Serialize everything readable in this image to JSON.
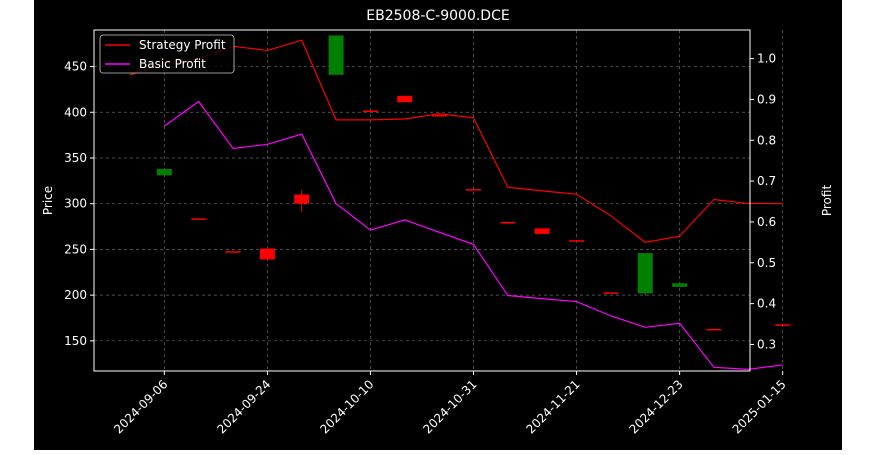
{
  "chart_data": {
    "type": "candlestick",
    "title": "EB2508-C-9000.DCE",
    "ylabel": "Price",
    "y2label": "Profit",
    "ylim": [
      117,
      490
    ],
    "y2lim": [
      0.235,
      1.07
    ],
    "yticks": [
      150,
      200,
      250,
      300,
      350,
      400,
      450
    ],
    "y2ticks": [
      0.3,
      0.4,
      0.5,
      0.6,
      0.7,
      0.8,
      0.9,
      1.0
    ],
    "y2tick_labels": [
      "0.3",
      "0.4",
      "0.5",
      "0.6",
      "0.7",
      "0.8",
      "0.9",
      "1.0"
    ],
    "xtick_labels": [
      "2024-09-06",
      "2024-09-24",
      "2024-10-10",
      "2024-10-31",
      "2024-11-21",
      "2024-12-23",
      "2025-01-15"
    ],
    "xtick_positions": [
      1,
      4,
      7,
      10,
      13,
      16,
      19
    ],
    "grid": true,
    "legend_position": "top-left",
    "up_color": "#008000",
    "down_color": "#ff0000",
    "candles": [
      {
        "i": 1,
        "open": 331,
        "high": 338,
        "low": 331,
        "close": 338
      },
      {
        "i": 2,
        "open": 284,
        "high": 284,
        "low": 283,
        "close": 283
      },
      {
        "i": 3,
        "open": 248,
        "high": 248,
        "low": 247,
        "close": 247
      },
      {
        "i": 4,
        "open": 251,
        "high": 251,
        "low": 239,
        "close": 239
      },
      {
        "i": 5,
        "open": 310,
        "high": 315,
        "low": 291,
        "close": 300
      },
      {
        "i": 6,
        "open": 441,
        "high": 484,
        "low": 441,
        "close": 484
      },
      {
        "i": 7,
        "open": 402,
        "high": 402,
        "low": 401,
        "close": 401
      },
      {
        "i": 8,
        "open": 418,
        "high": 418,
        "low": 411,
        "close": 411
      },
      {
        "i": 9,
        "open": 397,
        "high": 397,
        "low": 396,
        "close": 396
      },
      {
        "i": 10,
        "open": 316,
        "high": 316,
        "low": 315,
        "close": 315
      },
      {
        "i": 11,
        "open": 280,
        "high": 280,
        "low": 279,
        "close": 279
      },
      {
        "i": 12,
        "open": 273,
        "high": 273,
        "low": 267,
        "close": 267
      },
      {
        "i": 13,
        "open": 260,
        "high": 260,
        "low": 259,
        "close": 259
      },
      {
        "i": 14,
        "open": 203,
        "high": 203,
        "low": 202,
        "close": 202
      },
      {
        "i": 15,
        "open": 202,
        "high": 246,
        "low": 199,
        "close": 246
      },
      {
        "i": 16,
        "open": 209,
        "high": 213,
        "low": 209,
        "close": 213
      },
      {
        "i": 17,
        "open": 163,
        "high": 163,
        "low": 162,
        "close": 162
      },
      {
        "i": 19,
        "open": 168,
        "high": 168,
        "low": 167,
        "close": 167
      }
    ],
    "series": [
      {
        "name": "Strategy Profit",
        "color": "#ff0000",
        "x": [
          0,
          1,
          2,
          3,
          4,
          5,
          6,
          7,
          8,
          9,
          10,
          11,
          12,
          13,
          14,
          15,
          16,
          17,
          18,
          19
        ],
        "values": [
          0.96,
          0.99,
          1.0,
          1.03,
          1.02,
          1.045,
          0.85,
          0.85,
          0.852,
          0.865,
          0.855,
          0.685,
          0.676,
          0.668,
          0.615,
          0.55,
          0.565,
          0.655,
          0.645,
          0.645
        ]
      },
      {
        "name": "Basic Profit",
        "color": "#ff00ff",
        "x": [
          1,
          2,
          3,
          4,
          5,
          6,
          7,
          8,
          9,
          10,
          11,
          12,
          13,
          14,
          15,
          16,
          17,
          18,
          19
        ],
        "values": [
          0.835,
          0.895,
          0.78,
          0.79,
          0.815,
          0.645,
          0.58,
          0.605,
          0.575,
          0.545,
          0.42,
          0.412,
          0.405,
          0.37,
          0.342,
          0.352,
          0.244,
          0.239,
          0.25
        ]
      }
    ]
  }
}
